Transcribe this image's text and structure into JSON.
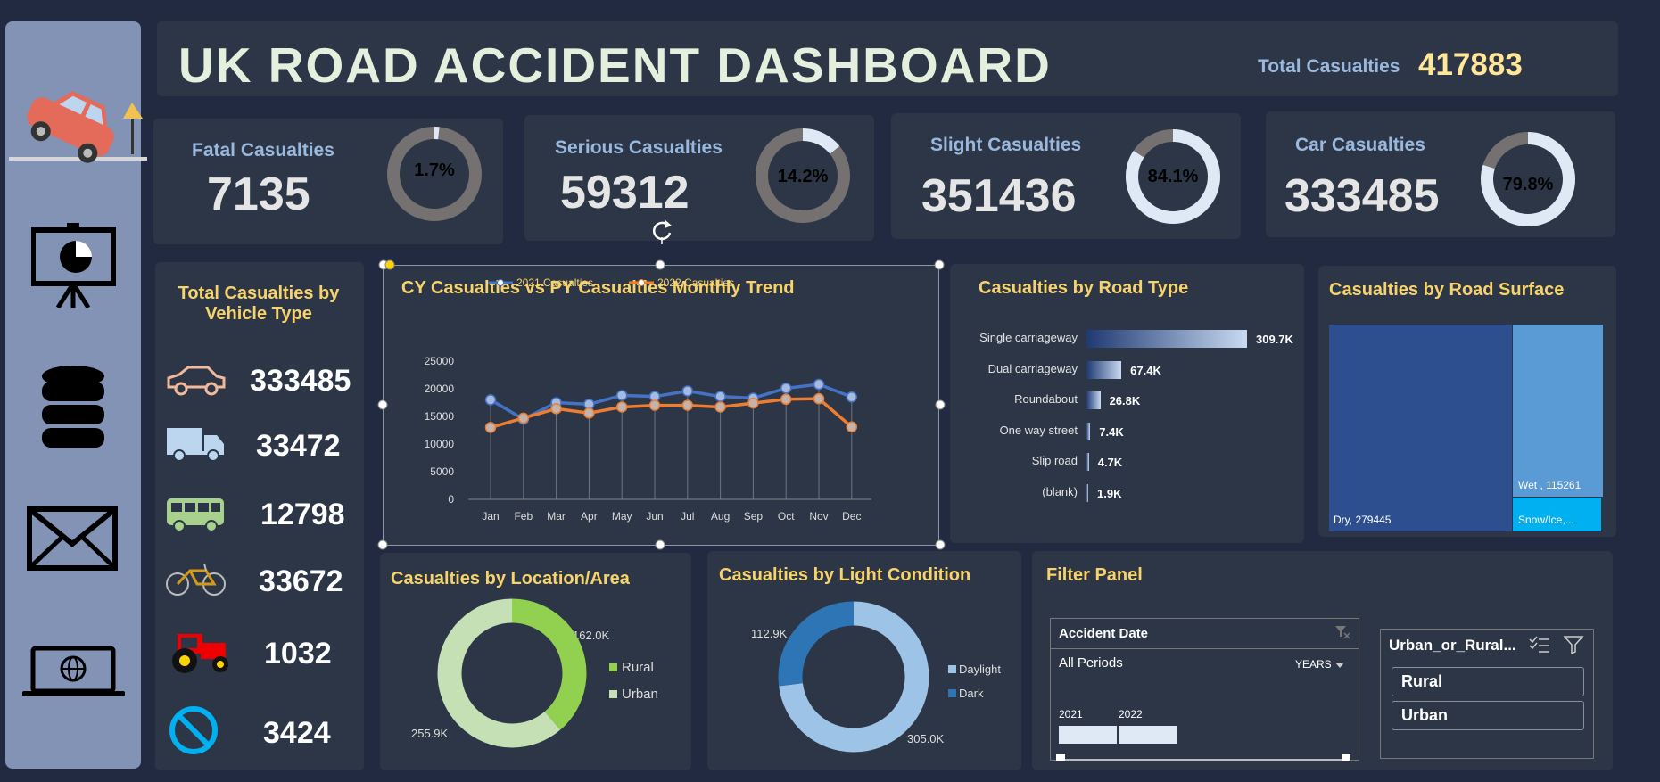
{
  "header": {
    "title": "UK ROAD ACCIDENT DASHBOARD",
    "total_label": "Total Casualties",
    "total_value": "417883"
  },
  "sidebar": {
    "icons": [
      "car-accident-icon",
      "presentation-icon",
      "database-icon",
      "mail-icon",
      "laptop-globe-icon"
    ]
  },
  "kpis": [
    {
      "label": "Fatal Casualties",
      "value": "7135",
      "pct": "1.7%",
      "fraction": 0.017
    },
    {
      "label": "Serious Casualties",
      "value": "59312",
      "pct": "14.2%",
      "fraction": 0.142
    },
    {
      "label": "Slight Casualties",
      "value": "351436",
      "pct": "84.1%",
      "fraction": 0.841
    },
    {
      "label": "Car Casualties",
      "value": "333485",
      "pct": "79.8%",
      "fraction": 0.798
    }
  ],
  "vehicle": {
    "title": "Total Casualties by Vehicle Type",
    "items": [
      {
        "icon": "car-icon",
        "value": "333485",
        "color": "#f3b99b"
      },
      {
        "icon": "truck-icon",
        "value": "33472",
        "color": "#bcd6ef"
      },
      {
        "icon": "bus-icon",
        "value": "12798",
        "color": "#a9d18e"
      },
      {
        "icon": "bicycle-icon",
        "value": "33672",
        "color": "#d39a19"
      },
      {
        "icon": "tractor-icon",
        "value": "1032",
        "color": "#ff0000"
      },
      {
        "icon": "no-entry-icon",
        "value": "3424",
        "color": "#00b0f0"
      }
    ]
  },
  "trend": {
    "title": "CY Casualties vs PY Casualties Monthly Trend"
  },
  "road_type": {
    "title": "Casualties by Road Type",
    "items": [
      {
        "label": "Single carriageway",
        "value_label": "309.7K",
        "value": 309.7
      },
      {
        "label": "Dual carriageway",
        "value_label": "67.4K",
        "value": 67.4
      },
      {
        "label": "Roundabout",
        "value_label": "26.8K",
        "value": 26.8
      },
      {
        "label": "One way street",
        "value_label": "7.4K",
        "value": 7.4
      },
      {
        "label": "Slip road",
        "value_label": "4.7K",
        "value": 4.7
      },
      {
        "label": "(blank)",
        "value_label": "1.9K",
        "value": 1.9
      }
    ]
  },
  "road_surface": {
    "title": "Casualties by Road Surface",
    "dry": "Dry, 279445",
    "wet": "Wet , 115261",
    "snow": "Snow/Ice,..."
  },
  "location": {
    "title": "Casualties by Location/Area",
    "rural_label": "Rural",
    "urban_label": "Urban",
    "rural_value": "162.0K",
    "urban_value": "255.9K",
    "rural": 162.0,
    "urban": 255.9
  },
  "light": {
    "title": "Casualties by Light Condition",
    "daylight_label": "Daylight",
    "dark_label": "Dark",
    "daylight_value": "305.0K",
    "dark_value": "112.9K",
    "daylight": 305.0,
    "dark": 112.9
  },
  "filter": {
    "title": "Filter Panel",
    "date_title": "Accident Date",
    "all_periods": "All Periods",
    "years": "YEARS",
    "y2021": "2021",
    "y2022": "2022",
    "urban_rural_title": "Urban_or_Rural...",
    "opt_rural": "Rural",
    "opt_urban": "Urban"
  },
  "chart_data": {
    "type": "line",
    "title": "CY Casualties vs PY Casualties Monthly Trend",
    "categories": [
      "Jan",
      "Feb",
      "Mar",
      "Apr",
      "May",
      "Jun",
      "Jul",
      "Aug",
      "Sep",
      "Oct",
      "Nov",
      "Dec"
    ],
    "series": [
      {
        "name": "2021 Casualties",
        "color": "#4472c4",
        "values": [
          18000,
          14500,
          17500,
          17200,
          18800,
          18600,
          19600,
          18600,
          18300,
          20100,
          20800,
          18500
        ]
      },
      {
        "name": "2022 Casualties",
        "color": "#ed7d31",
        "values": [
          13000,
          14700,
          16400,
          15600,
          16700,
          17000,
          17000,
          16700,
          17400,
          18100,
          18200,
          13100
        ]
      }
    ],
    "yticks": [
      0,
      5000,
      10000,
      15000,
      20000,
      25000
    ],
    "ylim": [
      0,
      25000
    ],
    "legend": "top"
  }
}
